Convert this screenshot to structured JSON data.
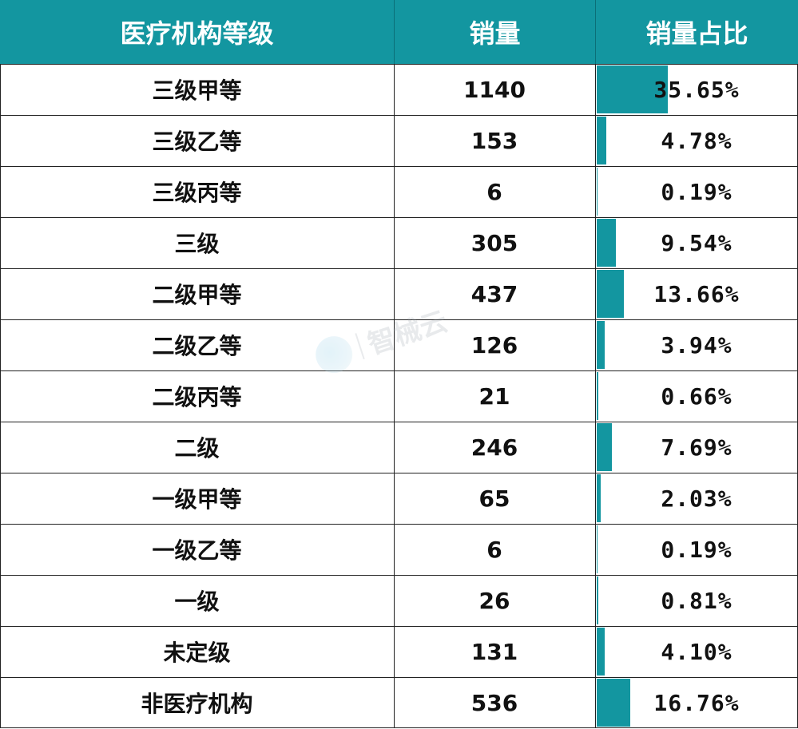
{
  "chart_data": {
    "type": "table",
    "headers": [
      "医疗机构等级",
      "销量",
      "销量占比"
    ],
    "rows": [
      {
        "level": "三级甲等",
        "sales": "1140",
        "share": "35.65%",
        "share_value": 35.65
      },
      {
        "level": "三级乙等",
        "sales": "153",
        "share": "4.78%",
        "share_value": 4.78
      },
      {
        "level": "三级丙等",
        "sales": "6",
        "share": "0.19%",
        "share_value": 0.19
      },
      {
        "level": "三级",
        "sales": "305",
        "share": "9.54%",
        "share_value": 9.54
      },
      {
        "level": "二级甲等",
        "sales": "437",
        "share": "13.66%",
        "share_value": 13.66
      },
      {
        "level": "二级乙等",
        "sales": "126",
        "share": "3.94%",
        "share_value": 3.94
      },
      {
        "level": "二级丙等",
        "sales": "21",
        "share": "0.66%",
        "share_value": 0.66
      },
      {
        "level": "二级",
        "sales": "246",
        "share": "7.69%",
        "share_value": 7.69
      },
      {
        "level": "一级甲等",
        "sales": "65",
        "share": "2.03%",
        "share_value": 2.03
      },
      {
        "level": "一级乙等",
        "sales": "6",
        "share": "0.19%",
        "share_value": 0.19
      },
      {
        "level": "一级",
        "sales": "26",
        "share": "0.81%",
        "share_value": 0.81
      },
      {
        "level": "未定级",
        "sales": "131",
        "share": "4.10%",
        "share_value": 4.1
      },
      {
        "level": "非医疗机构",
        "sales": "536",
        "share": "16.76%",
        "share_value": 16.76
      }
    ],
    "bar_color": "#1396a0",
    "header_color": "#1396a0"
  },
  "watermark": {
    "text": "智械云",
    "icon": "zhixieyun-logo-icon"
  }
}
